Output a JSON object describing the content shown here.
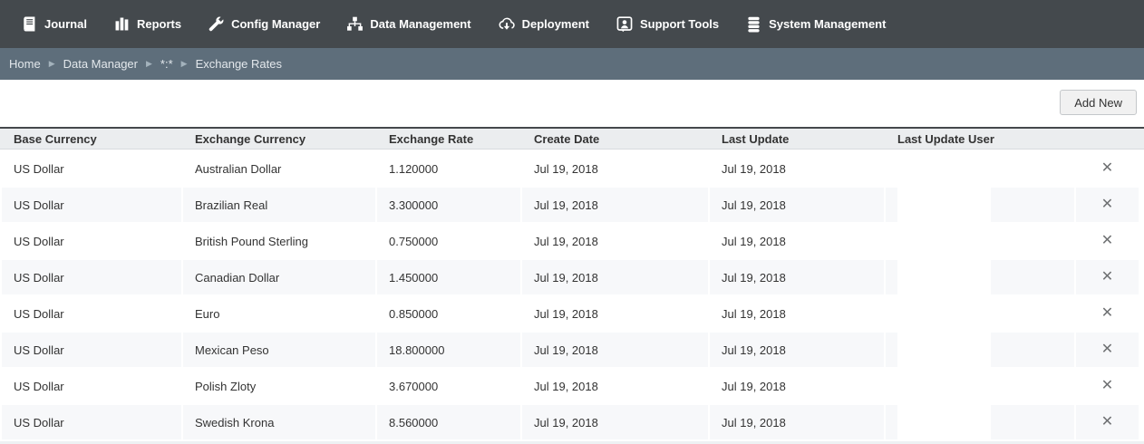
{
  "nav": {
    "items": [
      {
        "label": "Journal",
        "icon": "book-icon"
      },
      {
        "label": "Reports",
        "icon": "bar-chart-icon"
      },
      {
        "label": "Config Manager",
        "icon": "wrench-icon"
      },
      {
        "label": "Data Management",
        "icon": "sitemap-icon"
      },
      {
        "label": "Deployment",
        "icon": "cloud-download-icon"
      },
      {
        "label": "Support Tools",
        "icon": "support-person-icon"
      },
      {
        "label": "System Management",
        "icon": "database-stack-icon"
      }
    ]
  },
  "breadcrumb": {
    "items": [
      "Home",
      "Data Manager",
      "*:*",
      "Exchange Rates"
    ],
    "separator_glyph": "▶"
  },
  "toolbar": {
    "add_new_label": "Add New"
  },
  "table": {
    "columns": [
      "Base Currency",
      "Exchange Currency",
      "Exchange Rate",
      "Create Date",
      "Last Update",
      "Last Update User"
    ],
    "rows": [
      {
        "base_currency": "US Dollar",
        "exchange_currency": "Australian Dollar",
        "exchange_rate": "1.120000",
        "create_date": "Jul 19, 2018",
        "last_update": "Jul 19, 2018",
        "last_update_user": ""
      },
      {
        "base_currency": "US Dollar",
        "exchange_currency": "Brazilian Real",
        "exchange_rate": "3.300000",
        "create_date": "Jul 19, 2018",
        "last_update": "Jul 19, 2018",
        "last_update_user": ""
      },
      {
        "base_currency": "US Dollar",
        "exchange_currency": "British Pound Sterling",
        "exchange_rate": "0.750000",
        "create_date": "Jul 19, 2018",
        "last_update": "Jul 19, 2018",
        "last_update_user": ""
      },
      {
        "base_currency": "US Dollar",
        "exchange_currency": "Canadian Dollar",
        "exchange_rate": "1.450000",
        "create_date": "Jul 19, 2018",
        "last_update": "Jul 19, 2018",
        "last_update_user": ""
      },
      {
        "base_currency": "US Dollar",
        "exchange_currency": "Euro",
        "exchange_rate": "0.850000",
        "create_date": "Jul 19, 2018",
        "last_update": "Jul 19, 2018",
        "last_update_user": ""
      },
      {
        "base_currency": "US Dollar",
        "exchange_currency": "Mexican Peso",
        "exchange_rate": "18.800000",
        "create_date": "Jul 19, 2018",
        "last_update": "Jul 19, 2018",
        "last_update_user": ""
      },
      {
        "base_currency": "US Dollar",
        "exchange_currency": "Polish Zloty",
        "exchange_rate": "3.670000",
        "create_date": "Jul 19, 2018",
        "last_update": "Jul 19, 2018",
        "last_update_user": ""
      },
      {
        "base_currency": "US Dollar",
        "exchange_currency": "Swedish Krona",
        "exchange_rate": "8.560000",
        "create_date": "Jul 19, 2018",
        "last_update": "Jul 19, 2018",
        "last_update_user": ""
      }
    ],
    "delete_glyph": "✕"
  },
  "colors": {
    "nav_bg": "#44494d",
    "breadcrumb_bg": "#5e6e7b",
    "header_bg": "#ebedef",
    "header_top_border": "#44484c",
    "row_stripe_bg": "#f7f8fa",
    "text": "#333333"
  }
}
